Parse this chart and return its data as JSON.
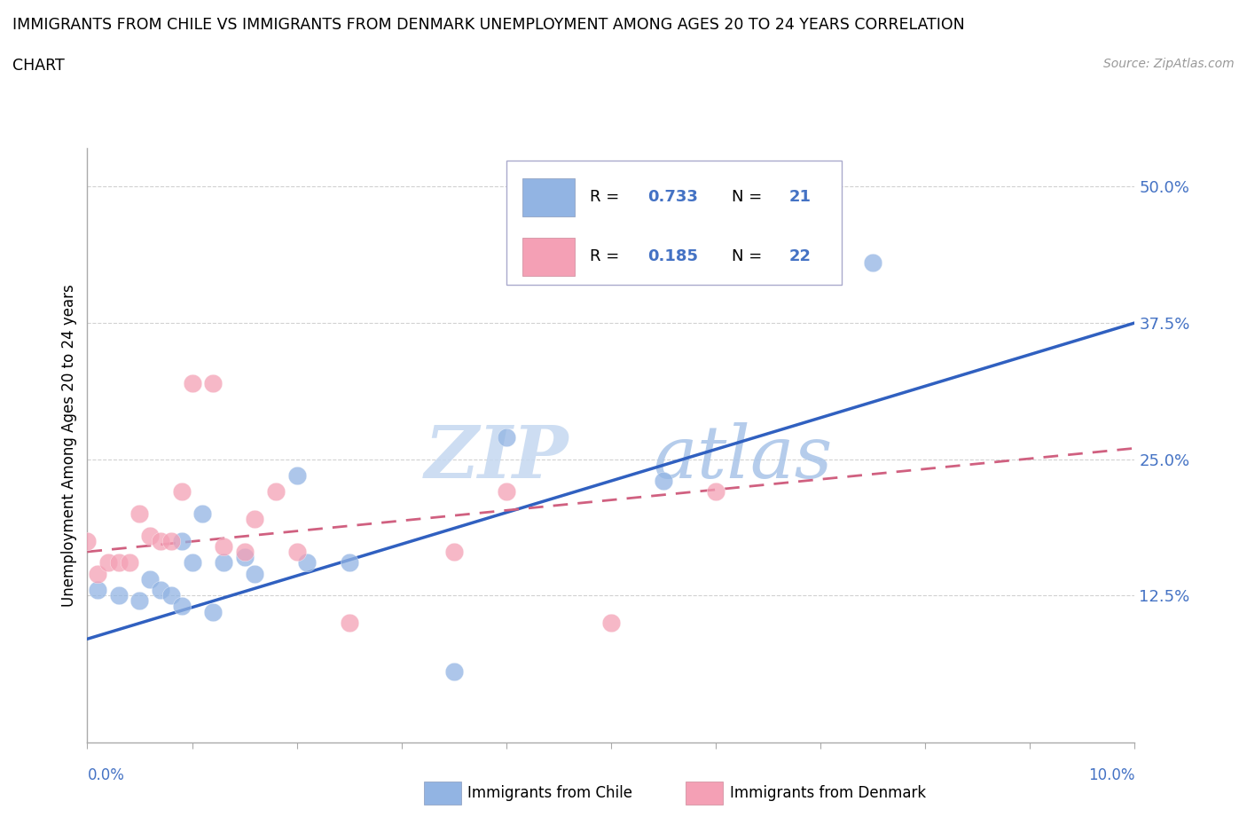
{
  "title_line1": "IMMIGRANTS FROM CHILE VS IMMIGRANTS FROM DENMARK UNEMPLOYMENT AMONG AGES 20 TO 24 YEARS CORRELATION",
  "title_line2": "CHART",
  "source_text": "Source: ZipAtlas.com",
  "ylabel": "Unemployment Among Ages 20 to 24 years",
  "xlim": [
    0.0,
    0.1
  ],
  "ylim": [
    -0.01,
    0.535
  ],
  "yticks": [
    0.125,
    0.25,
    0.375,
    0.5
  ],
  "ytick_labels": [
    "12.5%",
    "25.0%",
    "37.5%",
    "50.0%"
  ],
  "xtick_label_left": "0.0%",
  "xtick_label_right": "10.0%",
  "chile_color": "#92b4e3",
  "denmark_color": "#f4a0b5",
  "chile_line_color": "#3060c0",
  "denmark_line_color": "#d06080",
  "chile_R": "0.733",
  "chile_N": "21",
  "denmark_R": "0.185",
  "denmark_N": "22",
  "chile_scatter_x": [
    0.001,
    0.003,
    0.005,
    0.006,
    0.007,
    0.008,
    0.009,
    0.009,
    0.01,
    0.011,
    0.012,
    0.013,
    0.015,
    0.016,
    0.02,
    0.021,
    0.025,
    0.035,
    0.04,
    0.055,
    0.075
  ],
  "chile_scatter_y": [
    0.13,
    0.125,
    0.12,
    0.14,
    0.13,
    0.125,
    0.115,
    0.175,
    0.155,
    0.2,
    0.11,
    0.155,
    0.16,
    0.145,
    0.235,
    0.155,
    0.155,
    0.055,
    0.27,
    0.23,
    0.43
  ],
  "denmark_scatter_x": [
    0.0,
    0.001,
    0.002,
    0.003,
    0.004,
    0.005,
    0.006,
    0.007,
    0.008,
    0.009,
    0.01,
    0.012,
    0.013,
    0.015,
    0.016,
    0.018,
    0.02,
    0.025,
    0.035,
    0.04,
    0.05,
    0.06
  ],
  "denmark_scatter_y": [
    0.175,
    0.145,
    0.155,
    0.155,
    0.155,
    0.2,
    0.18,
    0.175,
    0.175,
    0.22,
    0.32,
    0.32,
    0.17,
    0.165,
    0.195,
    0.22,
    0.165,
    0.1,
    0.165,
    0.22,
    0.1,
    0.22
  ],
  "chile_line_x": [
    0.0,
    0.1
  ],
  "chile_line_y": [
    0.085,
    0.375
  ],
  "denmark_line_x": [
    0.0,
    0.1
  ],
  "denmark_line_y": [
    0.165,
    0.26
  ],
  "background_color": "#ffffff",
  "grid_color": "#cccccc",
  "axis_label_color": "#4472c4",
  "watermark_zip_color": "#c5d8f0",
  "watermark_atlas_color": "#a8c4e8"
}
